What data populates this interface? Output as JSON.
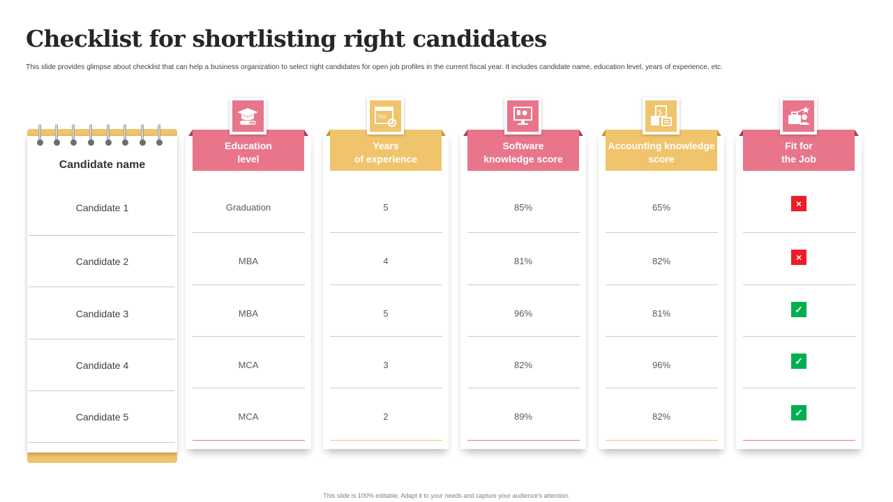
{
  "title": "Checklist for shortlisting right candidates",
  "subtitle": "This slide provides glimpse about checklist that can help a business organization to select right candidates for open job profiles in the current fiscal year. It includes candidate name, education level, years of experience, etc.",
  "footer": "This slide is 100% editable. Adapt it to your needs and capture your audience's attention.",
  "colors": {
    "pink": "#e8758a",
    "gold": "#f0c46c",
    "check_green": "#00b050",
    "cross_red": "#ee1c25"
  },
  "candidate_header": "Candidate name",
  "candidates": [
    "Candidate 1",
    "Candidate 2",
    "Candidate 3",
    "Candidate 4",
    "Candidate 5"
  ],
  "columns": [
    {
      "header_line1": "Education",
      "header_line2": "level",
      "icon": "graduation-cap-icon",
      "color": "pink",
      "values": [
        "Graduation",
        "MBA",
        "MBA",
        "MCA",
        "MCA"
      ]
    },
    {
      "header_line1": "Years",
      "header_line2": "of experience",
      "icon": "calendar-gear-icon",
      "icon_text": "Yrs",
      "color": "gold",
      "values": [
        "5",
        "4",
        "5",
        "3",
        "2"
      ]
    },
    {
      "header_line1": "Software",
      "header_line2": "knowledge score",
      "icon": "monitor-icon",
      "color": "pink",
      "values": [
        "85%",
        "81%",
        "96%",
        "82%",
        "89%"
      ]
    },
    {
      "header_line1": "Accounting knowledge",
      "header_line2": "score",
      "icon": "accounting-calculator-icon",
      "color": "gold",
      "values": [
        "65%",
        "82%",
        "81%",
        "96%",
        "82%"
      ]
    },
    {
      "header_line1": "Fit for",
      "header_line2": "the Job",
      "icon": "briefcase-star-icon",
      "color": "pink",
      "marks": [
        "cross",
        "cross",
        "check",
        "check",
        "check"
      ],
      "mark_symbols": {
        "cross": "×",
        "check": "✓"
      }
    }
  ]
}
